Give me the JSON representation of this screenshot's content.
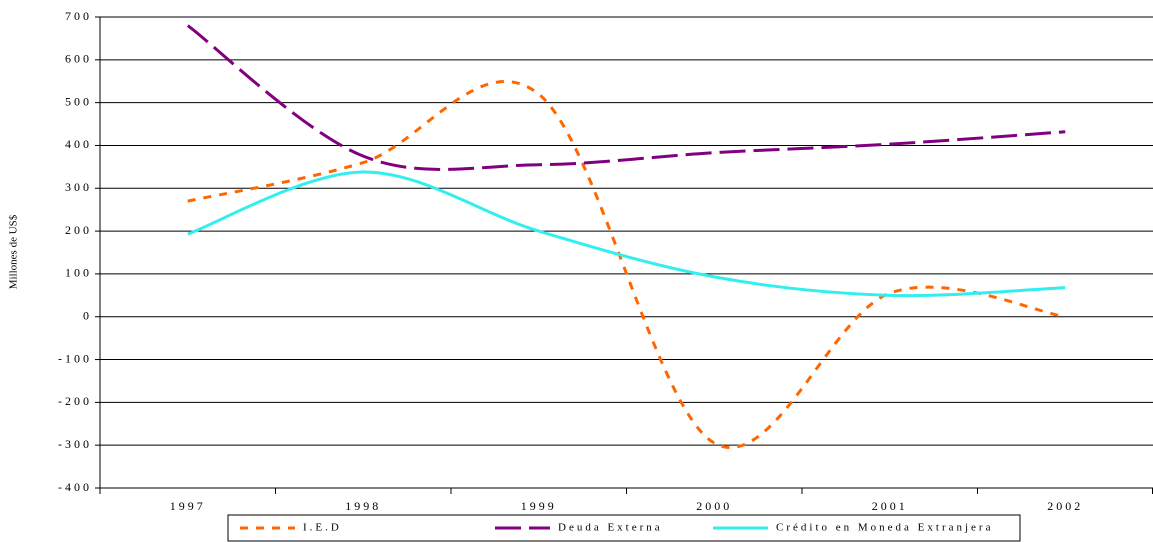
{
  "chart_data": {
    "type": "line",
    "y_label": "Millones de US$",
    "categories": [
      "1997",
      "1998",
      "1999",
      "2000",
      "2001",
      "2002"
    ],
    "series": [
      {
        "name": "I.E.D",
        "color": "#ff6600",
        "values": [
          270,
          360,
          520,
          -295,
          55,
          0
        ]
      },
      {
        "name": "Deuda Externa",
        "color": "#800080",
        "values": [
          680,
          375,
          355,
          383,
          403,
          432
        ]
      },
      {
        "name": "Crédito en Moneda Extranjera",
        "color": "#33eeee",
        "values": [
          193,
          338,
          200,
          93,
          50,
          68
        ]
      }
    ],
    "ylim": [
      -400,
      700
    ],
    "yticks": [
      -400,
      -300,
      -200,
      -100,
      0,
      100,
      200,
      300,
      400,
      500,
      600,
      700
    ],
    "grid": true,
    "legend": "bottom"
  }
}
